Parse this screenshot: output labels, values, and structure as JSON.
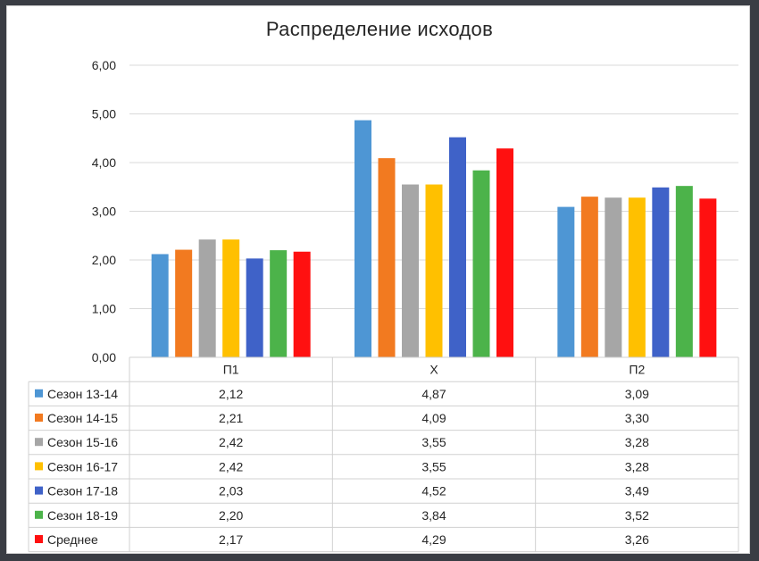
{
  "chart_data": {
    "type": "bar",
    "title": "Распределение исходов",
    "categories": [
      "П1",
      "Х",
      "П2"
    ],
    "ylim": [
      0,
      6
    ],
    "yticks": [
      "0,00",
      "1,00",
      "2,00",
      "3,00",
      "4,00",
      "5,00",
      "6,00"
    ],
    "grid": true,
    "legend_placement": "data table below chart",
    "series": [
      {
        "name": "Сезон 13-14",
        "color": "#4e96d4",
        "values": [
          2.12,
          4.87,
          3.09
        ],
        "labels": [
          "2,12",
          "4,87",
          "3,09"
        ]
      },
      {
        "name": "Сезон 14-15",
        "color": "#f27a20",
        "values": [
          2.21,
          4.09,
          3.3
        ],
        "labels": [
          "2,21",
          "4,09",
          "3,30"
        ]
      },
      {
        "name": "Сезон 15-16",
        "color": "#a6a6a6",
        "values": [
          2.42,
          3.55,
          3.28
        ],
        "labels": [
          "2,42",
          "3,55",
          "3,28"
        ]
      },
      {
        "name": "Сезон 16-17",
        "color": "#ffc000",
        "values": [
          2.42,
          3.55,
          3.28
        ],
        "labels": [
          "2,42",
          "3,55",
          "3,28"
        ]
      },
      {
        "name": "Сезон 17-18",
        "color": "#3f62c8",
        "values": [
          2.03,
          4.52,
          3.49
        ],
        "labels": [
          "2,03",
          "4,52",
          "3,49"
        ]
      },
      {
        "name": "Сезон 18-19",
        "color": "#4cb34a",
        "values": [
          2.2,
          3.84,
          3.52
        ],
        "labels": [
          "2,20",
          "3,84",
          "3,52"
        ]
      },
      {
        "name": "Среднее",
        "color": "#ff1010",
        "values": [
          2.17,
          4.29,
          3.26
        ],
        "labels": [
          "2,17",
          "4,29",
          "3,26"
        ]
      }
    ]
  }
}
